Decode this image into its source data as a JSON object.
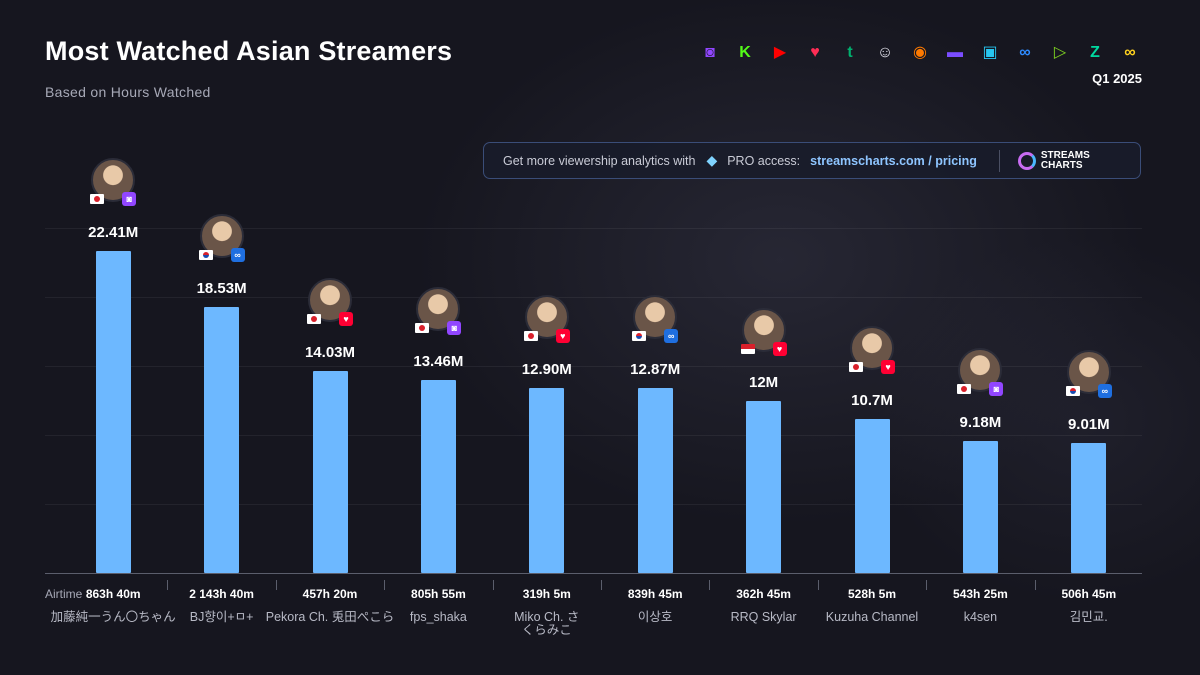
{
  "header": {
    "title": "Most Watched Asian Streamers",
    "subtitle": "Based on Hours Watched",
    "period": "Q1 2025"
  },
  "platform_icons": [
    {
      "icon": "twitch-icon",
      "glyph": "◙",
      "color": "#9146ff"
    },
    {
      "icon": "kick-icon",
      "glyph": "K",
      "color": "#53fc18"
    },
    {
      "icon": "youtube-icon",
      "glyph": "▶",
      "color": "#ff0000"
    },
    {
      "icon": "heart-platform-icon",
      "glyph": "♥",
      "color": "#ff2d55"
    },
    {
      "icon": "green-t-icon",
      "glyph": "t",
      "color": "#00b06e"
    },
    {
      "icon": "mascot-icon",
      "glyph": "☺",
      "color": "#e8e8f2"
    },
    {
      "icon": "orange-eye-icon",
      "glyph": "◉",
      "color": "#ff7a00"
    },
    {
      "icon": "purple-chat-icon",
      "glyph": "▬",
      "color": "#7b4dff"
    },
    {
      "icon": "cyan-video-icon",
      "glyph": "▣",
      "color": "#27c6f0"
    },
    {
      "icon": "infinity-icon",
      "glyph": "∞",
      "color": "#2e8bff"
    },
    {
      "icon": "green-play-icon",
      "glyph": "▷",
      "color": "#7ed321"
    },
    {
      "icon": "z-icon",
      "glyph": "Z",
      "color": "#00d9a0"
    },
    {
      "icon": "yellow-infinity-icon",
      "glyph": "∞",
      "color": "#ffd21f"
    }
  ],
  "promo": {
    "text": "Get more viewership analytics with",
    "pro": "PRO access:",
    "link": "streamscharts.com / pricing",
    "logo_line1": "STREAMS",
    "logo_line2": "CHARTS"
  },
  "airtime_label": "Airtime",
  "colors": {
    "bar": "#6db8ff",
    "background": "#16161f"
  },
  "chart_data": {
    "type": "bar",
    "title": "Most Watched Asian Streamers",
    "subtitle": "Based on Hours Watched",
    "ylim": [
      0,
      24000000
    ],
    "grid": true,
    "categories": [
      "加藤純一うん〇ちゃん",
      "BJ향이+ㅁ+",
      "Pekora Ch. 兎田ぺこら",
      "fps_shaka",
      "Miko Ch. さくらみこ",
      "이상호",
      "RRQ Skylar",
      "Kuzuha Channel",
      "k4sen",
      "김민교."
    ],
    "values": [
      22410000,
      18530000,
      14030000,
      13460000,
      12900000,
      12870000,
      12000000,
      10700000,
      9180000,
      9010000
    ],
    "value_labels": [
      "22.41M",
      "18.53M",
      "14.03M",
      "13.46M",
      "12.90M",
      "12.87M",
      "12M",
      "10.7M",
      "9.18M",
      "9.01M"
    ],
    "airtime": [
      "863h 40m",
      "2 143h 40m",
      "457h 20m",
      "805h 55m",
      "319h 5m",
      "839h 45m",
      "362h 45m",
      "528h 5m",
      "543h 25m",
      "506h 45m"
    ],
    "countries": [
      "jp",
      "kr",
      "jp",
      "jp",
      "jp",
      "kr",
      "id",
      "jp",
      "jp",
      "kr"
    ],
    "platforms": [
      "twitch-icon",
      "infinity-icon",
      "youtube-icon",
      "twitch-icon",
      "youtube-icon",
      "infinity-icon",
      "youtube-icon",
      "youtube-icon",
      "twitch-icon",
      "infinity-icon"
    ]
  }
}
